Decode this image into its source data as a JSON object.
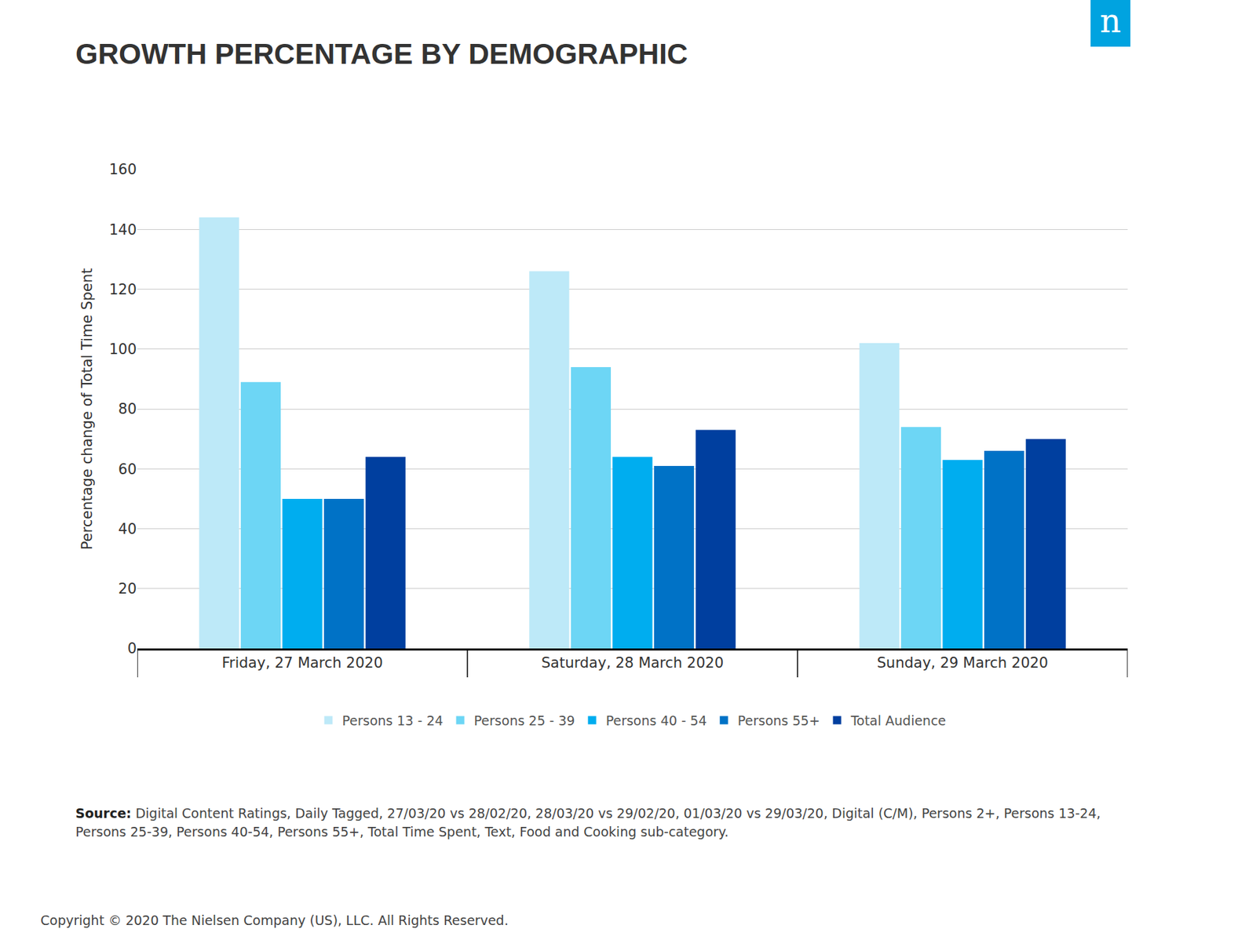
{
  "chart_data": {
    "type": "bar",
    "title": "GROWTH PERCENTAGE BY DEMOGRAPHIC",
    "y_label": "Percentage change of Total Time Spent",
    "categories": [
      "Friday, 27 March 2020",
      "Saturday, 28 March 2020",
      "Sunday, 29 March 2020"
    ],
    "series": [
      {
        "name": "Persons 13 - 24",
        "color": "#bde9f8",
        "values": [
          144,
          126,
          102
        ]
      },
      {
        "name": "Persons 25 - 39",
        "color": "#6dd6f5",
        "values": [
          89,
          94,
          74
        ]
      },
      {
        "name": "Persons 40 - 54",
        "color": "#00adef",
        "values": [
          50,
          64,
          63
        ]
      },
      {
        "name": "Persons 55+",
        "color": "#0072c6",
        "values": [
          50,
          61,
          66
        ]
      },
      {
        "name": "Total Audience",
        "color": "#003f9f",
        "values": [
          64,
          73,
          70
        ]
      }
    ],
    "ylim": [
      0,
      160
    ],
    "yticks": [
      0,
      20,
      40,
      60,
      80,
      100,
      120,
      140,
      160
    ],
    "grid": true,
    "legend": "bottom"
  },
  "logo": "n",
  "source_label": "Source:",
  "source": "Digital Content Ratings, Daily Tagged, 27/03/20 vs 28/02/20, 28/03/20 vs 29/02/20,  01/03/20 vs 29/03/20, Digital (C/M), Persons 2+, Persons 13-24, Persons 25-39, Persons 40-54, Persons 55+, Total Time Spent, Text, Food and Cooking sub-category.",
  "copyright": "Copyright © 2020 The Nielsen Company (US), LLC. All Rights Reserved."
}
